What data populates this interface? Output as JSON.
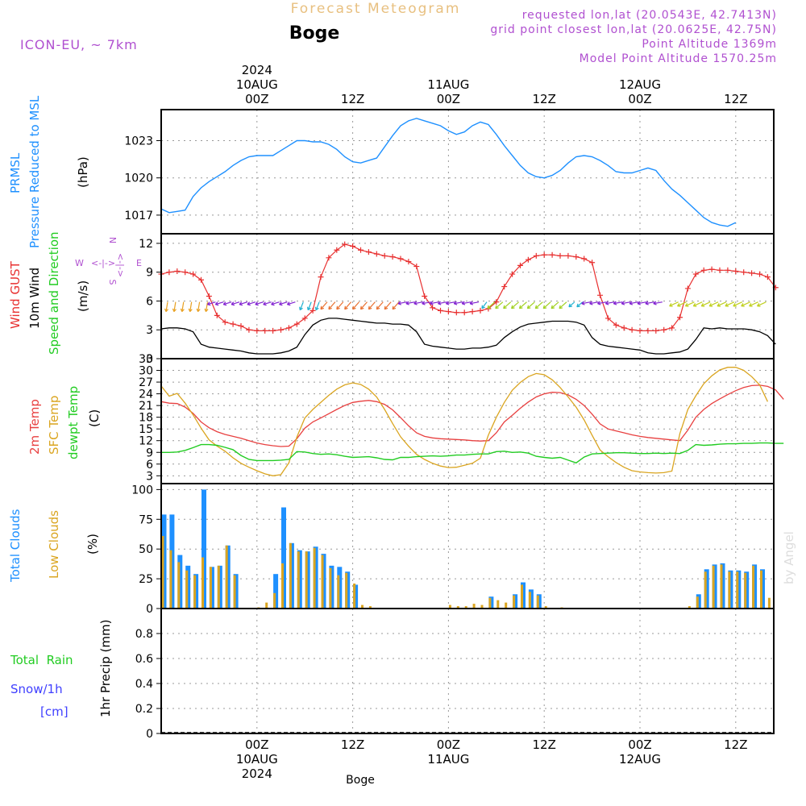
{
  "header": {
    "title": "Forecast Meteogram",
    "location": "Boge",
    "model": "ICON-EU, ~ 7km",
    "requested": "requested lon,lat (20.0543E, 42.7413N)",
    "gridpoint": "grid point closest lon,lat (20.0625E, 42.75N)",
    "point_altitude": "Point Altitude 1369m",
    "model_altitude": "Model Point Altitude 1570.25m",
    "footer_location": "Boge",
    "watermark": "by Angel"
  },
  "time_axis": {
    "top": [
      {
        "year": "2024",
        "date": "10AUG",
        "hour": "00Z"
      },
      {
        "hour": "12Z"
      },
      {
        "date": "11AUG",
        "hour": "00Z"
      },
      {
        "hour": "12Z"
      },
      {
        "date": "12AUG",
        "hour": "00Z"
      },
      {
        "hour": "12Z"
      }
    ],
    "bottom": [
      {
        "hour": "00Z",
        "date": "10AUG",
        "year": "2024"
      },
      {
        "hour": "12Z"
      },
      {
        "hour": "00Z",
        "date": "11AUG"
      },
      {
        "hour": "12Z"
      },
      {
        "hour": "00Z",
        "date": "12AUG"
      },
      {
        "hour": "12Z"
      }
    ]
  },
  "panel_labels": {
    "pressure": {
      "name1": "PRMSL",
      "name2": "Pressure Reduced to MSL",
      "unit": "(hPa)"
    },
    "wind": {
      "gust": "Wind GUST",
      "wind10m": "10m Wind",
      "speed_dir": "Speed and Direction",
      "unit": "(m/s)"
    },
    "temp": {
      "t2m": "2m Temp",
      "sfc": "SFC Temp",
      "dewpt": "dewpt Temp",
      "unit": "(C)"
    },
    "clouds": {
      "total": "Total Clouds",
      "low": "Low Clouds",
      "unit": "(%)"
    },
    "precip": {
      "rain": "Total  Rain",
      "snow": "Snow/1h",
      "snow_unit": "[cm]",
      "axis": "1hr Precip (mm)"
    }
  },
  "compass": {
    "n": "N",
    "s": "S",
    "w": "W",
    "e": "E"
  },
  "colors": {
    "pressure": "#1e90ff",
    "gust": "#e83030",
    "wind10m": "#000000",
    "t2m": "#e84040",
    "sfc": "#daa520",
    "dewpt": "#22cc22",
    "total_clouds": "#1e90ff",
    "low_clouds": "#daa520",
    "rain": "#22cc22",
    "snow": "#4040ff",
    "header_purple": "#b050d0",
    "title_orange": "#e8c080"
  },
  "chart_data": [
    {
      "type": "line",
      "x_start": "2024-08-09 12Z",
      "x_step_hours": 1,
      "ylim": [
        1015.5,
        1025.5
      ],
      "yticks": [
        1017,
        1020,
        1023
      ],
      "series": [
        {
          "name": "PRMSL",
          "values": [
            1017.5,
            1017.2,
            1017.3,
            1017.4,
            1018.5,
            1019.2,
            1019.7,
            1020.1,
            1020.5,
            1021.0,
            1021.4,
            1021.7,
            1021.8,
            1021.8,
            1021.8,
            1022.2,
            1022.6,
            1023.0,
            1023.0,
            1022.9,
            1022.9,
            1022.7,
            1022.3,
            1021.7,
            1021.3,
            1021.2,
            1021.4,
            1021.6,
            1022.5,
            1023.4,
            1024.2,
            1024.6,
            1024.8,
            1024.6,
            1024.4,
            1024.2,
            1023.8,
            1023.5,
            1023.7,
            1024.2,
            1024.5,
            1024.3,
            1023.5,
            1022.6,
            1021.8,
            1021.0,
            1020.4,
            1020.1,
            1020.0,
            1020.2,
            1020.6,
            1021.2,
            1021.7,
            1021.8,
            1021.7,
            1021.4,
            1021.0,
            1020.5,
            1020.4,
            1020.4,
            1020.6,
            1020.8,
            1020.6,
            1019.8,
            1019.1,
            1018.6,
            1018.0,
            1017.4,
            1016.8,
            1016.4,
            1016.2,
            1016.1,
            1016.4
          ]
        }
      ]
    },
    {
      "type": "line",
      "x_start": "2024-08-09 12Z",
      "x_step_hours": 1,
      "ylim": [
        0,
        13
      ],
      "yticks": [
        0,
        3,
        6,
        9,
        12
      ],
      "series": [
        {
          "name": "Wind GUST",
          "values": [
            8.8,
            9.0,
            9.1,
            9.0,
            8.8,
            8.2,
            6.5,
            4.5,
            3.8,
            3.6,
            3.4,
            3.0,
            2.9,
            2.9,
            2.9,
            3.0,
            3.2,
            3.6,
            4.2,
            5.0,
            8.5,
            10.5,
            11.3,
            11.9,
            11.7,
            11.3,
            11.1,
            10.9,
            10.7,
            10.6,
            10.4,
            10.1,
            9.6,
            6.5,
            5.3,
            5.0,
            4.9,
            4.8,
            4.8,
            4.9,
            5.0,
            5.2,
            5.9,
            7.5,
            8.8,
            9.7,
            10.3,
            10.7,
            10.8,
            10.8,
            10.7,
            10.7,
            10.6,
            10.4,
            10.0,
            6.6,
            4.2,
            3.5,
            3.2,
            3.0,
            2.9,
            2.9,
            2.9,
            3.0,
            3.2,
            4.3,
            7.3,
            8.8,
            9.2,
            9.3,
            9.2,
            9.2,
            9.1,
            9.0,
            8.9,
            8.8,
            8.5,
            7.4
          ]
        },
        {
          "name": "10m Wind",
          "values": [
            3.1,
            3.2,
            3.2,
            3.1,
            2.8,
            1.5,
            1.2,
            1.1,
            1.0,
            0.9,
            0.8,
            0.6,
            0.5,
            0.5,
            0.5,
            0.6,
            0.8,
            1.2,
            2.5,
            3.5,
            4.0,
            4.2,
            4.2,
            4.1,
            4.0,
            3.9,
            3.8,
            3.7,
            3.7,
            3.6,
            3.6,
            3.5,
            2.8,
            1.5,
            1.3,
            1.2,
            1.1,
            1.0,
            1.0,
            1.1,
            1.1,
            1.2,
            1.4,
            2.2,
            2.8,
            3.3,
            3.6,
            3.7,
            3.8,
            3.9,
            3.9,
            3.9,
            3.8,
            3.5,
            2.2,
            1.5,
            1.3,
            1.2,
            1.1,
            1.0,
            0.9,
            0.6,
            0.5,
            0.5,
            0.6,
            0.7,
            1.0,
            2.0,
            3.2,
            3.1,
            3.2,
            3.1,
            3.1,
            3.1,
            3.0,
            2.8,
            2.4,
            1.5
          ]
        }
      ]
    },
    {
      "type": "line",
      "x_start": "2024-08-09 12Z",
      "x_step_hours": 1,
      "ylim": [
        1,
        33
      ],
      "yticks": [
        3,
        6,
        9,
        12,
        15,
        18,
        21,
        24,
        27,
        30,
        33
      ],
      "series": [
        {
          "name": "2m Temp",
          "values": [
            22.0,
            21.6,
            21.5,
            20.6,
            19.0,
            16.8,
            15.3,
            14.3,
            13.6,
            13.1,
            12.6,
            12.0,
            11.4,
            11.0,
            10.7,
            10.5,
            10.6,
            12.5,
            15.2,
            16.8,
            17.8,
            18.9,
            20.0,
            21.0,
            21.8,
            22.1,
            22.3,
            22.0,
            21.3,
            19.9,
            17.9,
            15.8,
            14.0,
            13.1,
            12.7,
            12.5,
            12.4,
            12.3,
            12.2,
            12.0,
            11.9,
            12.0,
            14.0,
            16.8,
            18.5,
            20.3,
            21.9,
            23.2,
            24.0,
            24.4,
            24.3,
            23.7,
            22.6,
            21.0,
            18.8,
            16.3,
            15.0,
            14.5,
            14.0,
            13.5,
            13.1,
            12.8,
            12.6,
            12.4,
            12.2,
            12.0,
            14.7,
            18.0,
            20.0,
            21.5,
            22.7,
            23.8,
            24.8,
            25.6,
            26.1,
            26.2,
            25.9,
            25.0,
            22.6
          ]
        },
        {
          "name": "SFC Temp",
          "values": [
            26.0,
            23.4,
            24.1,
            21.6,
            18.6,
            15.2,
            12.2,
            10.6,
            9.3,
            7.6,
            6.2,
            5.2,
            4.3,
            3.5,
            3.0,
            3.3,
            6.3,
            12.9,
            17.8,
            20.0,
            21.8,
            23.6,
            25.2,
            26.3,
            26.8,
            26.4,
            25.2,
            23.2,
            20.0,
            16.4,
            13.0,
            10.6,
            8.5,
            7.2,
            6.2,
            5.5,
            5.1,
            5.2,
            5.7,
            6.2,
            7.5,
            13.4,
            18.0,
            21.8,
            24.9,
            26.9,
            28.4,
            29.2,
            28.9,
            27.6,
            25.6,
            23.2,
            20.6,
            17.3,
            13.4,
            9.6,
            7.9,
            6.4,
            5.2,
            4.3,
            4.0,
            3.8,
            3.7,
            3.8,
            4.2,
            13.8,
            20.0,
            23.5,
            26.6,
            28.6,
            30.1,
            30.8,
            30.8,
            30.0,
            28.4,
            26.3,
            22.0
          ]
        },
        {
          "name": "dewpt Temp",
          "values": [
            9.0,
            9.0,
            9.1,
            9.5,
            10.2,
            11.0,
            11.0,
            10.8,
            10.3,
            9.7,
            8.2,
            7.2,
            6.9,
            6.9,
            6.9,
            7.0,
            7.2,
            9.2,
            9.1,
            8.7,
            8.5,
            8.6,
            8.4,
            8.0,
            7.7,
            7.8,
            7.9,
            7.6,
            7.2,
            7.1,
            7.7,
            7.7,
            7.9,
            8.0,
            8.1,
            8.0,
            8.1,
            8.3,
            8.3,
            8.5,
            8.6,
            8.6,
            9.2,
            9.3,
            9.0,
            9.1,
            8.8,
            8.0,
            7.7,
            7.5,
            7.7,
            7.0,
            6.3,
            7.8,
            8.6,
            8.7,
            8.8,
            8.9,
            8.9,
            8.8,
            8.7,
            8.7,
            8.8,
            8.7,
            8.8,
            8.7,
            9.5,
            11.0,
            10.8,
            10.9,
            11.1,
            11.2,
            11.2,
            11.3,
            11.3,
            11.4,
            11.4,
            11.3,
            11.3
          ]
        }
      ]
    },
    {
      "type": "bar",
      "x_start": "2024-08-09 12Z",
      "x_step_hours": 1,
      "ylim": [
        0,
        105
      ],
      "yticks": [
        0,
        25,
        50,
        75,
        100
      ],
      "series": [
        {
          "name": "Total Clouds",
          "values": [
            79,
            79,
            45,
            36,
            29,
            100,
            35,
            36,
            53,
            29,
            0,
            0,
            1,
            5,
            29,
            85,
            55,
            49,
            48,
            52,
            46,
            36,
            35,
            31,
            20,
            4,
            3,
            0,
            0,
            0,
            0,
            0,
            0,
            0,
            0,
            0,
            3,
            3,
            3,
            5,
            4,
            10,
            8,
            6,
            12,
            22,
            16,
            12,
            3,
            0,
            2,
            0,
            0,
            0,
            0,
            0,
            0,
            0,
            0,
            0,
            0,
            0,
            0,
            0,
            0,
            0,
            2,
            12,
            33,
            37,
            38,
            32,
            32,
            31,
            37,
            33,
            9
          ]
        },
        {
          "name": "Low Clouds",
          "values": [
            61,
            49,
            39,
            32,
            28,
            43,
            35,
            36,
            53,
            28,
            0,
            0,
            1,
            5,
            13,
            38,
            55,
            48,
            48,
            51,
            45,
            34,
            28,
            30,
            21,
            3,
            2,
            0,
            0,
            0,
            0,
            0,
            0,
            0,
            0,
            0,
            3,
            2,
            2,
            4,
            3,
            9,
            7,
            5,
            11,
            20,
            14,
            11,
            2,
            0,
            1,
            0,
            0,
            0,
            0,
            0,
            0,
            0,
            0,
            0,
            0,
            0,
            0,
            0,
            0,
            0,
            2,
            10,
            31,
            36,
            37,
            31,
            31,
            30,
            36,
            32,
            9
          ]
        }
      ]
    },
    {
      "type": "bar",
      "x_start": "2024-08-09 12Z",
      "x_step_hours": 1,
      "ylim": [
        0,
        1
      ],
      "yticks": [
        0,
        0.2,
        0.4,
        0.6,
        0.8
      ],
      "series": [
        {
          "name": "1hr Precip",
          "values": []
        }
      ]
    }
  ]
}
